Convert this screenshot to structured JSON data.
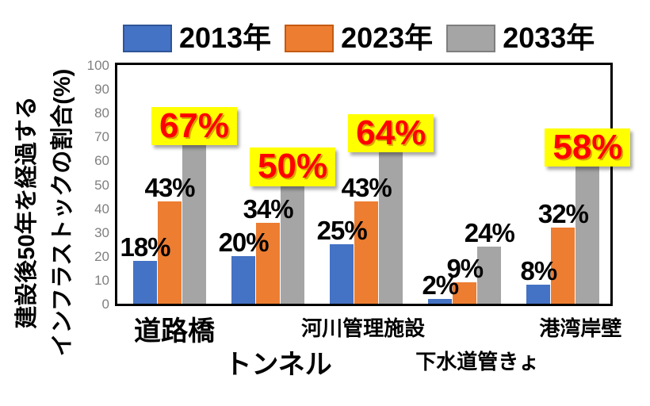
{
  "legend": {
    "items": [
      {
        "label": "2013年",
        "color": "#4472C4",
        "border_color": "#2F5597"
      },
      {
        "label": "2023年",
        "color": "#ED7D31",
        "border_color": "#C55A11"
      },
      {
        "label": "2033年",
        "color": "#A5A5A5",
        "border_color": "#7F7F7F"
      }
    ]
  },
  "chart_data": {
    "type": "bar",
    "title": "",
    "ylabel_line1": "建設後50年を経過する",
    "ylabel_line2": "インフラストックの割合(%)",
    "ylim": [
      0,
      100
    ],
    "ytick_step": 10,
    "ytick_labels": [
      "0",
      "10",
      "20",
      "30",
      "40",
      "50",
      "60",
      "70",
      "80",
      "90",
      "100"
    ],
    "grid": false,
    "legend_position": "top",
    "categories": [
      "道路橋",
      "トンネル",
      "河川管理施設",
      "下水道管きょ",
      "港湾岸壁"
    ],
    "category_label_rows": [
      0,
      1,
      0,
      1,
      0
    ],
    "category_label_large": [
      true,
      true,
      false,
      false,
      false
    ],
    "series": [
      {
        "name": "2013年",
        "color": "#4472C4",
        "values": [
          18,
          20,
          25,
          2,
          8
        ]
      },
      {
        "name": "2023年",
        "color": "#ED7D31",
        "values": [
          43,
          34,
          43,
          9,
          32
        ]
      },
      {
        "name": "2033年",
        "color": "#A5A5A5",
        "values": [
          67,
          50,
          64,
          24,
          58
        ]
      }
    ],
    "data_labels": {
      "suffix": "%",
      "normal_text_color": "#000000",
      "highlight_text_color": "#FF0000",
      "highlight_background": "#FFFF00",
      "highlighted": [
        {
          "series": "2033年",
          "category": "道路橋"
        },
        {
          "series": "2033年",
          "category": "トンネル"
        },
        {
          "series": "2033年",
          "category": "河川管理施設"
        },
        {
          "series": "2033年",
          "category": "港湾岸壁"
        }
      ]
    }
  }
}
